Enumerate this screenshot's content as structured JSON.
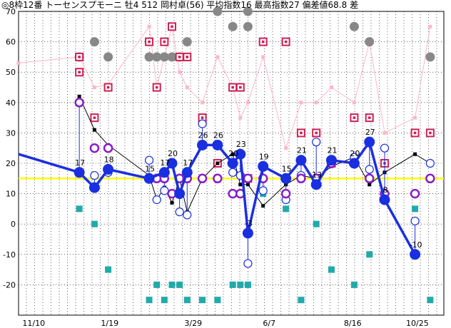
{
  "chart_data": {
    "type": "line",
    "title": "◎8枠12番 トーセンスプモーニ 牡4 512 岡村卓(56) 平均指数16 最高指数27 偏差値68.8 差",
    "ylim": [
      -30,
      70
    ],
    "y_ticks": [
      70,
      60,
      50,
      40,
      30,
      20,
      10,
      0,
      -10,
      -20
    ],
    "x_range": [
      0,
      28
    ],
    "x_ticks": [
      {
        "x": 1,
        "label": "11/10"
      },
      {
        "x": 6,
        "label": "1/19"
      },
      {
        "x": 11.5,
        "label": "3/29"
      },
      {
        "x": 16.5,
        "label": "6/7"
      },
      {
        "x": 22,
        "label": "8/16"
      },
      {
        "x": 27,
        "label": "10/25"
      }
    ],
    "reference_line": {
      "y": 15,
      "color": "#ffff00"
    },
    "colors": {
      "main": "#1a2fe0",
      "ring": "#8a1ec8",
      "blackline": "#000000",
      "pinkline": "#ffb6c8",
      "pinksquare": "#cc2255",
      "graycircle": "#888888",
      "teal": "#22aaaa"
    },
    "series": [
      {
        "name": "",
        "role": "main",
        "points": [
          [
            0,
            23
          ],
          [
            4,
            17
          ],
          [
            5,
            12
          ],
          [
            5.9,
            18
          ],
          [
            8.6,
            15
          ],
          [
            9.6,
            17
          ],
          [
            10.1,
            20
          ],
          [
            10.6,
            10
          ],
          [
            11.1,
            17
          ],
          [
            12.1,
            26
          ],
          [
            13.1,
            26
          ],
          [
            14.1,
            20
          ],
          [
            14.6,
            23
          ],
          [
            15.1,
            -3
          ],
          [
            16.1,
            19
          ],
          [
            17.6,
            15
          ],
          [
            18.6,
            21
          ],
          [
            19.6,
            13
          ],
          [
            20.6,
            21
          ],
          [
            22.1,
            20
          ],
          [
            23.1,
            27
          ],
          [
            24.1,
            8
          ],
          [
            26.1,
            -10
          ]
        ],
        "labels": [
          [
            4,
            17,
            "17"
          ],
          [
            5.9,
            18,
            "18"
          ],
          [
            8.6,
            15,
            "15"
          ],
          [
            9.6,
            17,
            "17"
          ],
          [
            10.1,
            20,
            "20"
          ],
          [
            11.1,
            17,
            "17"
          ],
          [
            12.1,
            26,
            "26"
          ],
          [
            13.1,
            26,
            "26"
          ],
          [
            14.1,
            20,
            "20"
          ],
          [
            14.6,
            23,
            "23"
          ],
          [
            15.1,
            -3,
            "-3"
          ],
          [
            16.1,
            19,
            "19"
          ],
          [
            17.6,
            15,
            "15"
          ],
          [
            18.6,
            21,
            "21"
          ],
          [
            19.6,
            13,
            "13"
          ],
          [
            20.6,
            21,
            "21"
          ],
          [
            22.1,
            20,
            "20"
          ],
          [
            23.1,
            27,
            "27"
          ],
          [
            24.1,
            8,
            "8"
          ],
          [
            26.1,
            -10,
            "-10"
          ]
        ]
      },
      {
        "name": "",
        "role": "black",
        "points": [
          [
            4,
            42
          ],
          [
            5,
            31
          ],
          [
            5.9,
            26
          ],
          [
            8.6,
            16
          ],
          [
            9.1,
            8
          ],
          [
            9.6,
            12
          ],
          [
            10.1,
            7
          ],
          [
            10.6,
            15
          ],
          [
            11.1,
            4
          ],
          [
            12.1,
            15
          ],
          [
            13.1,
            20
          ],
          [
            14.1,
            23
          ],
          [
            14.6,
            13
          ],
          [
            15.1,
            13
          ],
          [
            16.1,
            6
          ],
          [
            17.6,
            13
          ],
          [
            18.6,
            16
          ],
          [
            19.6,
            15
          ],
          [
            20.6,
            19
          ],
          [
            22.1,
            22
          ],
          [
            23.1,
            13
          ],
          [
            24.1,
            17
          ],
          [
            26.1,
            23
          ],
          [
            27.1,
            20
          ]
        ]
      },
      {
        "name": "",
        "role": "pink",
        "points": [
          [
            0,
            53
          ],
          [
            4,
            55
          ],
          [
            5,
            45
          ],
          [
            5.9,
            46
          ],
          [
            8.6,
            65
          ],
          [
            9.1,
            45
          ],
          [
            9.6,
            55
          ],
          [
            10.1,
            65
          ],
          [
            10.6,
            50
          ],
          [
            11.1,
            45
          ],
          [
            12.1,
            40
          ],
          [
            13.1,
            55
          ],
          [
            14.1,
            45
          ],
          [
            14.6,
            35
          ],
          [
            15.1,
            40
          ],
          [
            16.1,
            55
          ],
          [
            17.6,
            25
          ],
          [
            18.6,
            40
          ],
          [
            19.6,
            40
          ],
          [
            20.6,
            45
          ],
          [
            22.1,
            40
          ],
          [
            23.1,
            60
          ],
          [
            24.1,
            30
          ],
          [
            26.1,
            35
          ],
          [
            27.1,
            65
          ]
        ]
      }
    ],
    "open_circles": [
      [
        4,
        40
      ],
      [
        5,
        16
      ],
      [
        5.9,
        17
      ],
      [
        8.6,
        21
      ],
      [
        9.1,
        8
      ],
      [
        9.6,
        11
      ],
      [
        10.6,
        4
      ],
      [
        11.1,
        3
      ],
      [
        12.1,
        33
      ],
      [
        13.1,
        26
      ],
      [
        14.1,
        17
      ],
      [
        14.6,
        16
      ],
      [
        15.1,
        -13
      ],
      [
        16.1,
        11
      ],
      [
        17.6,
        8
      ],
      [
        18.6,
        16
      ],
      [
        19.6,
        27
      ],
      [
        20.6,
        20
      ],
      [
        22.1,
        22
      ],
      [
        23.1,
        18
      ],
      [
        24.1,
        25
      ],
      [
        26.1,
        1
      ],
      [
        27.1,
        20
      ]
    ],
    "ring_markers": [
      [
        4,
        40
      ],
      [
        5,
        25
      ],
      [
        5.9,
        25
      ],
      [
        8.6,
        15
      ],
      [
        9.1,
        15
      ],
      [
        9.6,
        15
      ],
      [
        10.1,
        10
      ],
      [
        10.6,
        15
      ],
      [
        11.1,
        15
      ],
      [
        12.1,
        15
      ],
      [
        13.1,
        15
      ],
      [
        14.1,
        10
      ],
      [
        14.6,
        10
      ],
      [
        15.1,
        15
      ],
      [
        16.1,
        15
      ],
      [
        17.6,
        10
      ],
      [
        18.6,
        15
      ],
      [
        19.6,
        15
      ],
      [
        20.6,
        20
      ],
      [
        22.1,
        20
      ],
      [
        23.1,
        15
      ],
      [
        24.1,
        10
      ],
      [
        26.1,
        10
      ],
      [
        27.1,
        15
      ]
    ],
    "pink_squares": [
      [
        4,
        55
      ],
      [
        4,
        50
      ],
      [
        5,
        35
      ],
      [
        5.9,
        45
      ],
      [
        8.6,
        60
      ],
      [
        9.1,
        45
      ],
      [
        9.6,
        60
      ],
      [
        10.1,
        65
      ],
      [
        10.6,
        55
      ],
      [
        11.1,
        55
      ],
      [
        12.1,
        35
      ],
      [
        13.1,
        20
      ],
      [
        14.1,
        45
      ],
      [
        14.6,
        45
      ],
      [
        15.1,
        15
      ],
      [
        16.1,
        60
      ],
      [
        17.6,
        60
      ],
      [
        18.6,
        30
      ],
      [
        19.6,
        30
      ],
      [
        20.6,
        20
      ],
      [
        22.1,
        35
      ],
      [
        23.1,
        35
      ],
      [
        24.1,
        20
      ],
      [
        26.1,
        30
      ],
      [
        27.1,
        30
      ]
    ],
    "gray_circles": [
      [
        4,
        55
      ],
      [
        5,
        60
      ],
      [
        5.9,
        55
      ],
      [
        8.6,
        55
      ],
      [
        9.1,
        55
      ],
      [
        9.6,
        55
      ],
      [
        10.1,
        55
      ],
      [
        10.6,
        55
      ],
      [
        11.1,
        60
      ],
      [
        13.1,
        70
      ],
      [
        14.1,
        65
      ],
      [
        15.1,
        70
      ],
      [
        15.1,
        65
      ],
      [
        22.1,
        65
      ],
      [
        23.1,
        60
      ],
      [
        27.1,
        55
      ]
    ],
    "teal_squares": [
      [
        4,
        5
      ],
      [
        5,
        0
      ],
      [
        5.9,
        -15
      ],
      [
        8.6,
        -25
      ],
      [
        9.1,
        -20
      ],
      [
        9.6,
        -25
      ],
      [
        10.1,
        -20
      ],
      [
        10.6,
        -20
      ],
      [
        11.1,
        -25
      ],
      [
        12.1,
        -25
      ],
      [
        13.1,
        -25
      ],
      [
        14.1,
        -20
      ],
      [
        14.6,
        -20
      ],
      [
        15.1,
        -20
      ],
      [
        16.1,
        10
      ],
      [
        17.6,
        5
      ],
      [
        18.6,
        -25
      ],
      [
        19.6,
        0
      ],
      [
        20.6,
        -15
      ],
      [
        22.1,
        -20
      ],
      [
        23.1,
        -10
      ],
      [
        26.1,
        5
      ],
      [
        27.1,
        -25
      ]
    ]
  }
}
